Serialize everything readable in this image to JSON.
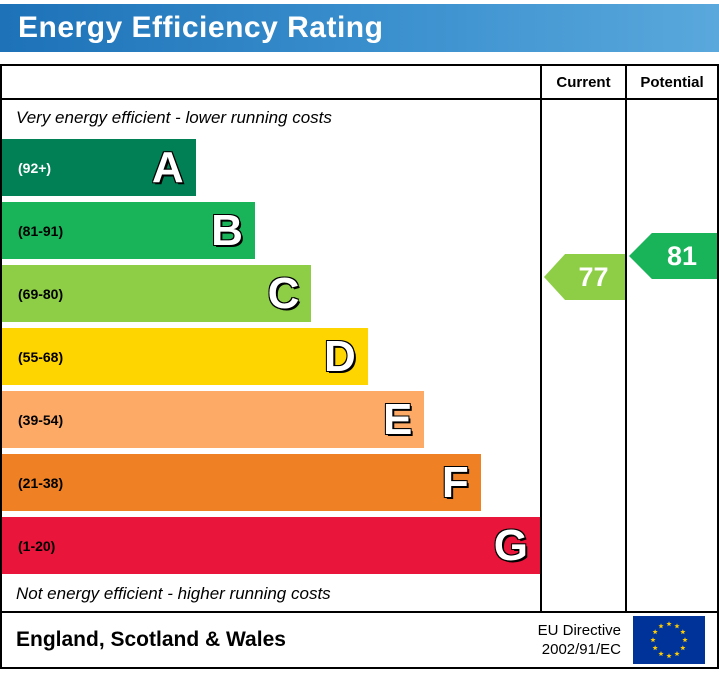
{
  "title": "Energy Efficiency Rating",
  "title_bar_color": "#2e85c8",
  "header": {
    "current": "Current",
    "potential": "Potential"
  },
  "captions": {
    "top": "Very energy efficient - lower running costs",
    "bottom": "Not energy efficient - higher running costs"
  },
  "footer": {
    "region": "England, Scotland & Wales",
    "directive_line1": "EU Directive",
    "directive_line2": "2002/91/EC",
    "flag_field_color": "#003399",
    "flag_star_color": "#ffcc00"
  },
  "chart_data": {
    "type": "bar",
    "title": "Energy Efficiency Rating",
    "orientation": "horizontal",
    "bands": [
      {
        "letter": "A",
        "label": "(92+)",
        "min": 92,
        "max": 100,
        "color": "#008054",
        "width_pct": 36,
        "label_color": "#ffffff"
      },
      {
        "letter": "B",
        "label": "(81-91)",
        "min": 81,
        "max": 91,
        "color": "#19b459",
        "width_pct": 47,
        "label_color": "#000000"
      },
      {
        "letter": "C",
        "label": "(69-80)",
        "min": 69,
        "max": 80,
        "color": "#8dce46",
        "width_pct": 57.5,
        "label_color": "#000000"
      },
      {
        "letter": "D",
        "label": "(55-68)",
        "min": 55,
        "max": 68,
        "color": "#ffd500",
        "width_pct": 68,
        "label_color": "#000000"
      },
      {
        "letter": "E",
        "label": "(39-54)",
        "min": 39,
        "max": 54,
        "color": "#fcaa65",
        "width_pct": 78.5,
        "label_color": "#000000"
      },
      {
        "letter": "F",
        "label": "(21-38)",
        "min": 21,
        "max": 38,
        "color": "#ef8023",
        "width_pct": 89,
        "label_color": "#000000"
      },
      {
        "letter": "G",
        "label": "(1-20)",
        "min": 1,
        "max": 20,
        "color": "#e9153b",
        "width_pct": 100,
        "label_color": "#000000"
      }
    ],
    "current": {
      "value": 77,
      "band": "C",
      "color": "#8dce46"
    },
    "potential": {
      "value": 81,
      "band": "B",
      "color": "#19b459"
    }
  }
}
